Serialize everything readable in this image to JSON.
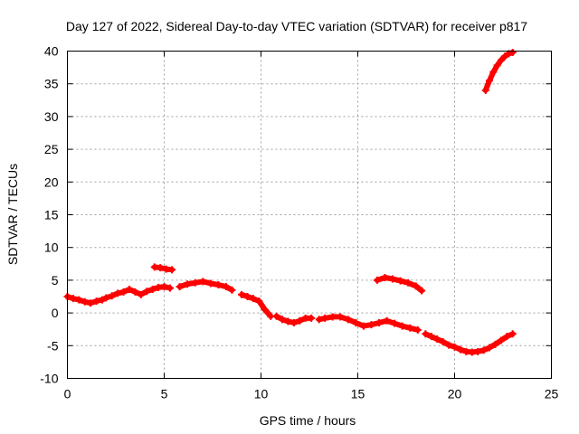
{
  "chart_data": {
    "type": "scatter",
    "title": "Day 127 of 2022, Sidereal Day-to-day VTEC variation (SDTVAR) for receiver p817",
    "xlabel": "GPS time / hours",
    "ylabel": "SDTVAR / TECUs",
    "xlim": [
      0,
      25
    ],
    "ylim": [
      -10,
      40
    ],
    "xticks": [
      0,
      5,
      10,
      15,
      20,
      25
    ],
    "yticks": [
      -10,
      -5,
      0,
      5,
      10,
      15,
      20,
      25,
      30,
      35,
      40
    ],
    "grid": true,
    "marker_color": "#ff0000",
    "series": [
      {
        "name": "segment-1",
        "x": [
          0.0,
          0.3,
          0.6,
          0.9,
          1.2,
          1.5,
          1.8,
          2.0,
          2.3,
          2.6,
          2.9,
          3.2,
          3.5,
          3.8,
          4.1,
          4.4,
          4.7,
          5.0,
          5.3
        ],
        "y": [
          2.5,
          2.2,
          2.0,
          1.7,
          1.5,
          1.8,
          2.0,
          2.3,
          2.6,
          3.0,
          3.2,
          3.6,
          3.2,
          2.8,
          3.3,
          3.6,
          3.9,
          4.0,
          3.8
        ]
      },
      {
        "name": "segment-2",
        "x": [
          4.5,
          4.8,
          5.1,
          5.4
        ],
        "y": [
          7.0,
          6.9,
          6.7,
          6.6
        ]
      },
      {
        "name": "segment-3",
        "x": [
          5.8,
          6.2,
          6.6,
          7.0,
          7.4,
          7.8,
          8.2,
          8.5
        ],
        "y": [
          4.0,
          4.4,
          4.6,
          4.8,
          4.5,
          4.3,
          4.0,
          3.5
        ]
      },
      {
        "name": "segment-4",
        "x": [
          9.0,
          9.3,
          9.6,
          9.9,
          10.2,
          10.5
        ],
        "y": [
          2.8,
          2.5,
          2.2,
          1.8,
          0.5,
          -0.5
        ]
      },
      {
        "name": "segment-5",
        "x": [
          10.8,
          11.1,
          11.4,
          11.7,
          12.0,
          12.3,
          12.6
        ],
        "y": [
          -0.5,
          -1.0,
          -1.3,
          -1.5,
          -1.2,
          -0.8,
          -0.8
        ]
      },
      {
        "name": "segment-6",
        "x": [
          13.0,
          13.3,
          13.7,
          14.1,
          14.5,
          14.9,
          15.3,
          15.7,
          16.1,
          16.5,
          16.9,
          17.3,
          17.7,
          18.1
        ],
        "y": [
          -1.0,
          -0.8,
          -0.6,
          -0.6,
          -1.0,
          -1.5,
          -2.0,
          -1.8,
          -1.5,
          -1.2,
          -1.6,
          -2.0,
          -2.3,
          -2.6
        ]
      },
      {
        "name": "segment-7",
        "x": [
          16.0,
          16.4,
          16.8,
          17.2,
          17.6,
          18.0,
          18.3
        ],
        "y": [
          5.0,
          5.4,
          5.2,
          4.9,
          4.6,
          4.1,
          3.4
        ]
      },
      {
        "name": "segment-8",
        "x": [
          18.5,
          18.8,
          19.1,
          19.4,
          19.7,
          20.0,
          20.3,
          20.6,
          20.9,
          21.2,
          21.5,
          21.8,
          22.1,
          22.4,
          22.7,
          23.0
        ],
        "y": [
          -3.2,
          -3.6,
          -4.0,
          -4.4,
          -4.9,
          -5.2,
          -5.6,
          -5.9,
          -6.0,
          -5.9,
          -5.7,
          -5.3,
          -4.8,
          -4.2,
          -3.6,
          -3.2
        ]
      },
      {
        "name": "segment-9",
        "x": [
          21.6,
          21.8,
          22.0,
          22.2,
          22.4,
          22.6,
          22.8,
          23.0
        ],
        "y": [
          34.0,
          35.5,
          36.8,
          37.8,
          38.6,
          39.2,
          39.6,
          39.8
        ]
      }
    ]
  }
}
